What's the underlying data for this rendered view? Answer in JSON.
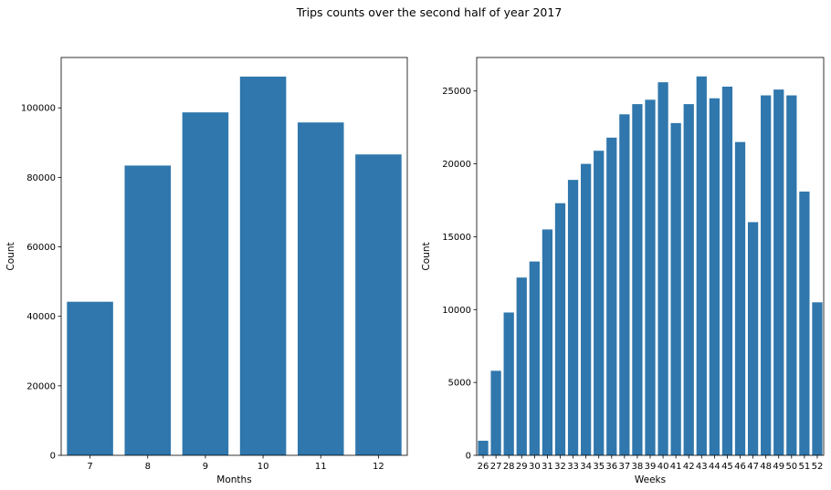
{
  "figure": {
    "suptitle": "Trips counts over the second half of year 2017",
    "bar_color": "#2f77ac"
  },
  "chart_data": [
    {
      "type": "bar",
      "title": "",
      "xlabel": "Months",
      "ylabel": "Count",
      "categories": [
        "7",
        "8",
        "9",
        "10",
        "11",
        "12"
      ],
      "values": [
        44200,
        83400,
        98700,
        109000,
        95800,
        86600
      ],
      "ylim": [
        0,
        114500
      ],
      "yticks": [
        0,
        20000,
        40000,
        60000,
        80000,
        100000
      ],
      "grid": false
    },
    {
      "type": "bar",
      "title": "",
      "xlabel": "Weeks",
      "ylabel": "Count",
      "categories": [
        "26",
        "27",
        "28",
        "29",
        "30",
        "31",
        "32",
        "33",
        "34",
        "35",
        "36",
        "37",
        "38",
        "39",
        "40",
        "41",
        "42",
        "43",
        "44",
        "45",
        "46",
        "47",
        "48",
        "49",
        "50",
        "51",
        "52"
      ],
      "values": [
        1000,
        5800,
        9800,
        12200,
        13300,
        15500,
        17300,
        18900,
        20000,
        20900,
        21800,
        23400,
        24100,
        24400,
        25600,
        22800,
        24100,
        26000,
        24500,
        25300,
        21500,
        16000,
        24700,
        25100,
        24700,
        18100,
        10500
      ],
      "ylim": [
        0,
        27300
      ],
      "yticks": [
        0,
        5000,
        10000,
        15000,
        20000,
        25000
      ],
      "grid": false
    }
  ]
}
